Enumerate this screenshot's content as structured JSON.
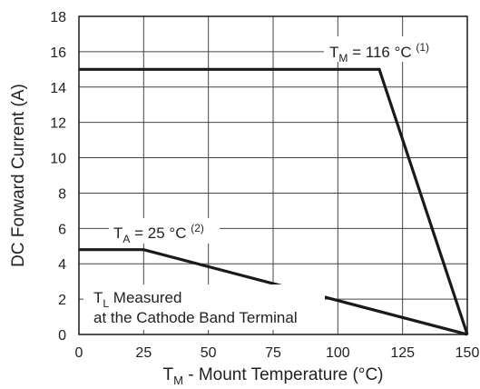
{
  "chart_data": {
    "type": "line",
    "title": "",
    "xlabel": {
      "main": "T",
      "sub": "M",
      "rest": " - Mount Temperature (°C)"
    },
    "ylabel": "DC Forward Current (A)",
    "xlim": [
      0,
      150
    ],
    "ylim": [
      0,
      18
    ],
    "xticks": [
      0,
      25,
      50,
      75,
      100,
      125,
      150
    ],
    "yticks": [
      0,
      2,
      4,
      6,
      8,
      10,
      12,
      14,
      16,
      18
    ],
    "grid": true,
    "series": [
      {
        "x": [
          0,
          116,
          150
        ],
        "y": [
          15,
          15,
          0
        ],
        "label": {
          "main": "T",
          "sub": "M",
          "rest": " = 116 °C ",
          "sup": "(1)"
        }
      },
      {
        "x": [
          0,
          25,
          150
        ],
        "y": [
          4.8,
          4.8,
          0
        ],
        "label": {
          "main": "T",
          "sub": "A",
          "rest": " = 25 °C ",
          "sup": "(2)"
        }
      }
    ],
    "annotation": {
      "line1_main": "T",
      "line1_sub": "L",
      "line1_rest": " Measured",
      "line2": "at the Cathode Band Terminal"
    },
    "colors": {
      "line": "#1a1a1a",
      "grid": "#444444",
      "text": "#222222"
    }
  }
}
